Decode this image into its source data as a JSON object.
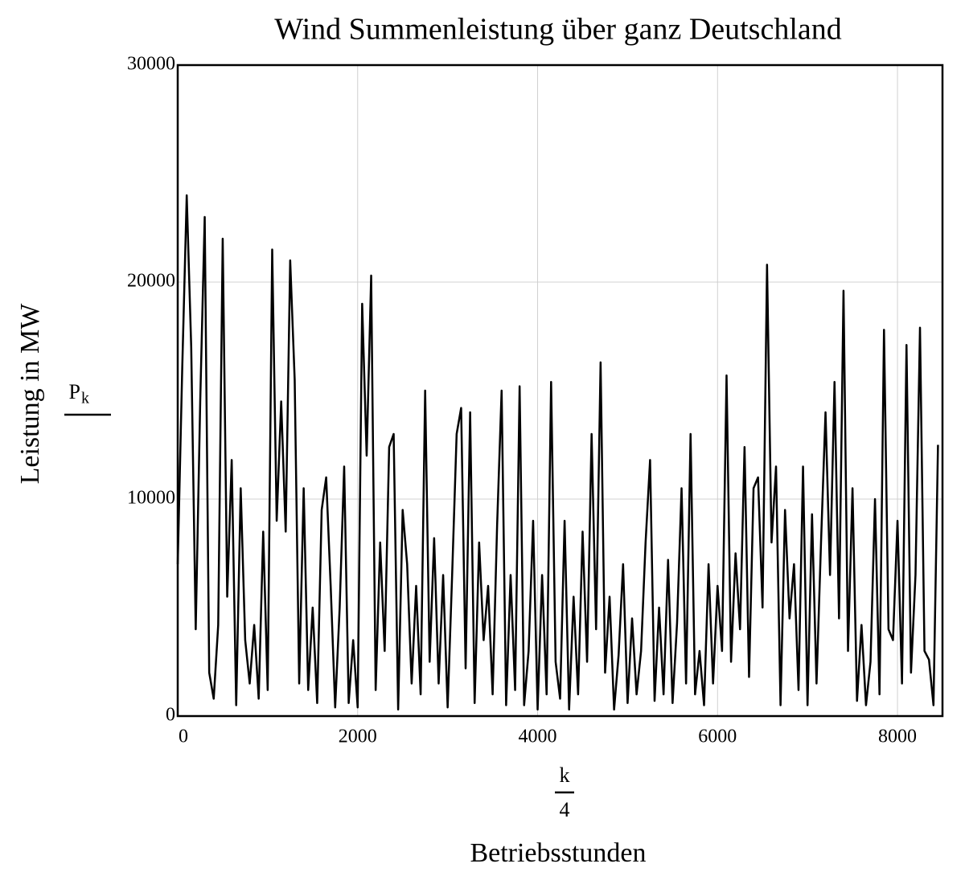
{
  "chart_data": {
    "type": "line",
    "title": "Wind Summenleistung über ganz Deutschland",
    "y_label": "Leistung in MW",
    "y_expr": {
      "symbol": "P",
      "subscript": "k"
    },
    "x_expr": {
      "numerator": "k",
      "denominator": "4"
    },
    "x_label": "Betriebsstunden",
    "xlim": [
      0,
      8500
    ],
    "ylim": [
      0,
      30000
    ],
    "xticks": [
      0,
      2000,
      4000,
      6000,
      8000
    ],
    "yticks": [
      0,
      10000,
      20000,
      30000
    ],
    "grid": true,
    "x": [
      0,
      50,
      100,
      150,
      200,
      250,
      300,
      350,
      400,
      450,
      500,
      550,
      600,
      650,
      700,
      750,
      800,
      850,
      900,
      950,
      1000,
      1050,
      1100,
      1150,
      1200,
      1250,
      1300,
      1350,
      1400,
      1450,
      1500,
      1550,
      1600,
      1650,
      1700,
      1750,
      1800,
      1850,
      1900,
      1950,
      2000,
      2050,
      2100,
      2150,
      2200,
      2250,
      2300,
      2350,
      2400,
      2450,
      2500,
      2550,
      2600,
      2650,
      2700,
      2750,
      2800,
      2850,
      2900,
      2950,
      3000,
      3050,
      3100,
      3150,
      3200,
      3250,
      3300,
      3350,
      3400,
      3450,
      3500,
      3550,
      3600,
      3650,
      3700,
      3750,
      3800,
      3850,
      3900,
      3950,
      4000,
      4050,
      4100,
      4150,
      4200,
      4250,
      4300,
      4350,
      4400,
      4450,
      4500,
      4550,
      4600,
      4650,
      4700,
      4750,
      4800,
      4850,
      4900,
      4950,
      5000,
      5050,
      5100,
      5150,
      5200,
      5250,
      5300,
      5350,
      5400,
      5450,
      5500,
      5550,
      5600,
      5650,
      5700,
      5750,
      5800,
      5850,
      5900,
      5950,
      6000,
      6050,
      6100,
      6150,
      6200,
      6250,
      6300,
      6350,
      6400,
      6450,
      6500,
      6550,
      6600,
      6650,
      6700,
      6750,
      6800,
      6850,
      6900,
      6950,
      7000,
      7050,
      7100,
      7150,
      7200,
      7250,
      7300,
      7350,
      7400,
      7450,
      7500,
      7550,
      7600,
      7650,
      7700,
      7750,
      7800,
      7850,
      7900,
      7950,
      8000,
      8050,
      8100,
      8150,
      8200,
      8250,
      8300,
      8350,
      8400,
      8450
    ],
    "series": [
      {
        "color": "#000000",
        "values": [
          7000,
          16000,
          24000,
          17000,
          4000,
          14500,
          23000,
          2000,
          800,
          4200,
          22000,
          5500,
          11800,
          500,
          10500,
          3500,
          1500,
          4200,
          800,
          8500,
          1200,
          21500,
          9000,
          14500,
          8500,
          21000,
          15500,
          1500,
          10500,
          1200,
          5000,
          600,
          9500,
          11000,
          6000,
          400,
          5000,
          11500,
          600,
          3500,
          400,
          19000,
          12000,
          20300,
          1200,
          8000,
          3000,
          12400,
          13000,
          300,
          9500,
          7000,
          1500,
          6000,
          1000,
          15000,
          2500,
          8200,
          1500,
          6500,
          400,
          6500,
          13000,
          14200,
          2200,
          14000,
          600,
          8000,
          3500,
          6000,
          1000,
          8800,
          15000,
          500,
          6500,
          1200,
          15200,
          500,
          3000,
          9000,
          300,
          6500,
          1000,
          15400,
          2500,
          800,
          9000,
          300,
          5500,
          1000,
          8500,
          2500,
          13000,
          4000,
          16300,
          2000,
          5500,
          300,
          2800,
          7000,
          600,
          4500,
          1000,
          3000,
          8000,
          11800,
          700,
          5000,
          1000,
          7200,
          600,
          4300,
          10500,
          1500,
          13000,
          1000,
          3000,
          500,
          7000,
          1500,
          6000,
          3000,
          15700,
          2500,
          7500,
          4000,
          12400,
          1800,
          10500,
          11000,
          5000,
          20800,
          8000,
          11500,
          500,
          9500,
          4500,
          7000,
          1200,
          11500,
          500,
          9300,
          1500,
          8000,
          14000,
          6500,
          15400,
          4500,
          19600,
          3000,
          10500,
          700,
          4200,
          500,
          2500,
          10000,
          1000,
          17800,
          4000,
          3500,
          9000,
          1500,
          17100,
          2000,
          6500,
          17900,
          3000,
          2600,
          500,
          12500
        ]
      }
    ]
  }
}
